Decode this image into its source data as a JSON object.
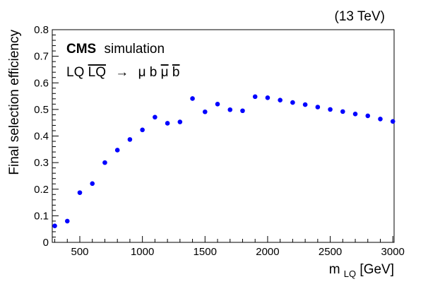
{
  "chart_data": {
    "type": "scatter",
    "energy_label": "(13 TeV)",
    "experiment": "CMS",
    "status": "simulation",
    "process": {
      "lq": "LQ",
      "lq_bar": "LQ",
      "arrow": "→",
      "mu1": "μ",
      "b1": "b",
      "mu2": "μ",
      "b2": "b"
    },
    "ylabel": "Final selection efficiency",
    "xlabel": {
      "main": "m",
      "sub": "LQ",
      "unit": " [GeV]"
    },
    "xlim": [
      300,
      3000
    ],
    "ylim": [
      0,
      0.8
    ],
    "x_ticks": [
      500,
      1000,
      1500,
      2000,
      2500,
      3000
    ],
    "y_ticks": [
      0,
      0.1,
      0.2,
      0.3,
      0.4,
      0.5,
      0.6,
      0.7,
      0.8
    ],
    "y_tick_labels": [
      "0",
      "0.1",
      "0.2",
      "0.3",
      "0.4",
      "0.5",
      "0.6",
      "0.7",
      "0.8"
    ],
    "marker_color": "#0000ff",
    "series": [
      {
        "name": "efficiency",
        "x": [
          300,
          400,
          500,
          600,
          700,
          800,
          900,
          1000,
          1100,
          1200,
          1300,
          1400,
          1500,
          1600,
          1700,
          1800,
          1900,
          2000,
          2100,
          2200,
          2300,
          2400,
          2500,
          2600,
          2700,
          2800,
          2900,
          3000
        ],
        "y": [
          0.062,
          0.08,
          0.187,
          0.221,
          0.3,
          0.347,
          0.387,
          0.423,
          0.471,
          0.448,
          0.453,
          0.541,
          0.491,
          0.52,
          0.499,
          0.495,
          0.548,
          0.544,
          0.535,
          0.526,
          0.518,
          0.509,
          0.5,
          0.492,
          0.483,
          0.476,
          0.464,
          0.455
        ]
      }
    ]
  }
}
